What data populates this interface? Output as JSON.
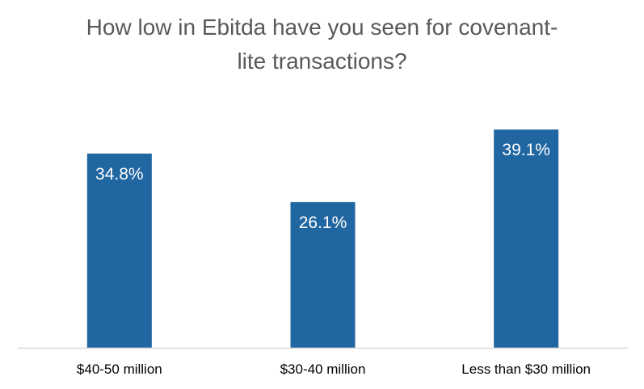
{
  "chart_data": {
    "type": "bar",
    "title_lines": [
      "How low in Ebitda have you seen for covenant-",
      "lite transactions?"
    ],
    "categories": [
      "$40-50 million",
      "$30-40 million",
      "Less than $30 million"
    ],
    "values": [
      34.8,
      26.1,
      39.1
    ],
    "data_labels": [
      "34.8%",
      "26.1%",
      "39.1%"
    ],
    "ylim": [
      0,
      40
    ],
    "grid": false,
    "legend": "none",
    "colors": {
      "bar": "#2066A0",
      "axis": "#D9D9D9",
      "title": "#595959",
      "data_label": "#FFFFFF",
      "category_label": "#000000"
    }
  }
}
